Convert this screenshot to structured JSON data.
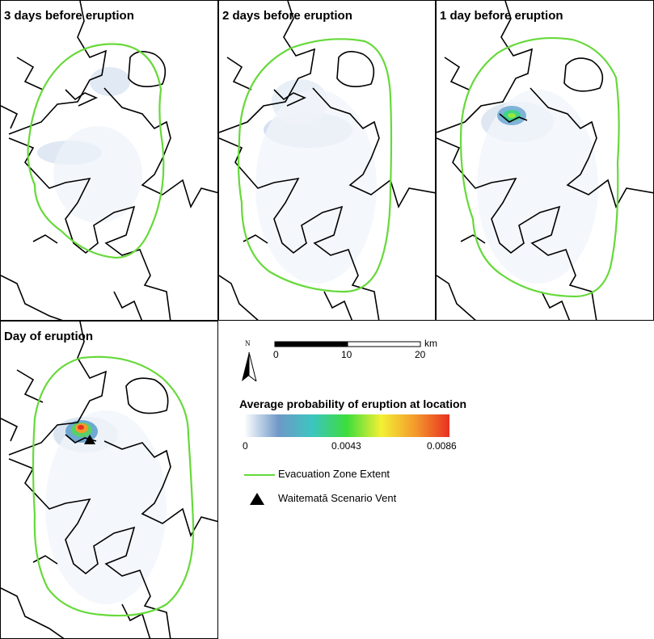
{
  "panels": [
    {
      "title": "3 days before eruption"
    },
    {
      "title": "2 days before eruption"
    },
    {
      "title": "1 day before eruption"
    },
    {
      "title": "Day of eruption"
    }
  ],
  "legend": {
    "north_label": "N",
    "scale": {
      "ticks": [
        "0",
        "10",
        "20"
      ],
      "unit": "km"
    },
    "probability_heading": "Average probability of eruption at location",
    "ramp_labels": [
      "0",
      "0.0043",
      "0.0086"
    ],
    "ramp_colors": [
      "#ffffff",
      "#6f98c8",
      "#3cc5c0",
      "#3cdd3c",
      "#f3f034",
      "#f39a2c",
      "#e83020"
    ],
    "zone_label": "Evacuation Zone Extent",
    "zone_color": "#66d93a",
    "vent_label": "Waitematā Scenario Vent"
  }
}
